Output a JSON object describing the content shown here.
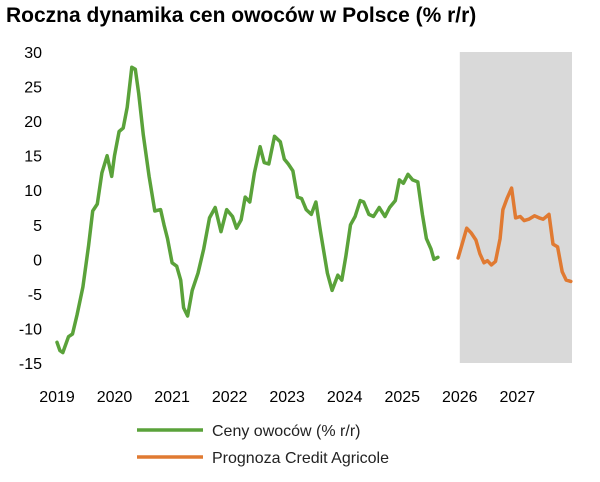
{
  "chart_data": {
    "type": "line",
    "title": "Roczna dynamika cen owoców w Polsce (% r/r)",
    "xlabel": "",
    "ylabel": "",
    "ylim": [
      -15,
      30
    ],
    "yticks": [
      30,
      25,
      20,
      15,
      10,
      5,
      0,
      -5,
      -10,
      -15
    ],
    "xticks": [
      "2019",
      "2020",
      "2021",
      "2022",
      "2023",
      "2024",
      "2025",
      "2026",
      "2027"
    ],
    "xlim": [
      2019.0,
      2027.95
    ],
    "grid": false,
    "legend_position": "bottom",
    "shaded_region": {
      "from": 2026.0,
      "to": 2027.95,
      "color": "#d9d9d9"
    },
    "series": [
      {
        "name": "Ceny owoców (% r/r)",
        "color": "#5aa23a",
        "x": [
          2019.0,
          2019.05,
          2019.1,
          2019.2,
          2019.27,
          2019.35,
          2019.45,
          2019.55,
          2019.62,
          2019.7,
          2019.78,
          2019.87,
          2019.95,
          2020.0,
          2020.08,
          2020.15,
          2020.22,
          2020.3,
          2020.36,
          2020.42,
          2020.5,
          2020.6,
          2020.7,
          2020.8,
          2020.86,
          2020.92,
          2021.0,
          2021.08,
          2021.15,
          2021.2,
          2021.27,
          2021.35,
          2021.45,
          2021.55,
          2021.65,
          2021.75,
          2021.85,
          2021.95,
          2022.05,
          2022.12,
          2022.2,
          2022.27,
          2022.35,
          2022.43,
          2022.53,
          2022.6,
          2022.68,
          2022.78,
          2022.88,
          2022.95,
          2023.02,
          2023.1,
          2023.18,
          2023.25,
          2023.33,
          2023.42,
          2023.5,
          2023.58,
          2023.7,
          2023.78,
          2023.88,
          2023.95,
          2024.02,
          2024.1,
          2024.18,
          2024.27,
          2024.33,
          2024.42,
          2024.5,
          2024.6,
          2024.7,
          2024.78,
          2024.88,
          2024.95,
          2025.02,
          2025.1,
          2025.18,
          2025.27,
          2025.35,
          2025.42,
          2025.5,
          2025.55,
          2025.62,
          2025.7,
          2025.8,
          2025.88,
          2025.95
        ],
        "values": [
          -12.0,
          -13.2,
          -13.5,
          -11.2,
          -10.8,
          -8.0,
          -4.0,
          2.0,
          7.0,
          8.0,
          12.5,
          15.0,
          12.0,
          15.0,
          18.5,
          19.0,
          22.0,
          27.8,
          27.5,
          24.0,
          18.0,
          12.0,
          7.0,
          7.2,
          5.0,
          3.0,
          -0.5,
          -1.0,
          -3.0,
          -7.0,
          -8.2,
          -4.5,
          -2.0,
          1.5,
          6.0,
          7.5,
          4.0,
          7.2,
          6.2,
          4.5,
          5.7,
          9.0,
          8.3,
          12.5,
          16.3,
          14.0,
          13.8,
          17.8,
          17.0,
          14.5,
          13.8,
          12.8,
          9.0,
          8.8,
          7.2,
          6.5,
          8.3,
          4.0,
          -2.0,
          -4.5,
          -2.3,
          -3.0,
          0.5,
          5.0,
          6.2,
          8.5,
          8.3,
          6.5,
          6.2,
          7.5,
          6.2,
          7.5,
          8.5,
          11.5,
          11.0,
          12.3,
          11.5,
          11.2,
          6.5,
          3.0,
          1.5,
          0.0,
          0.3,
          null,
          null,
          null,
          null
        ]
      },
      {
        "name": "Prognoza Credit Agricole",
        "color": "#e07a32",
        "x": [
          2025.97,
          2026.05,
          2026.12,
          2026.2,
          2026.28,
          2026.35,
          2026.42,
          2026.48,
          2026.55,
          2026.62,
          2026.7,
          2026.75,
          2026.82,
          2026.9,
          2026.97,
          2027.05,
          2027.12,
          2027.2,
          2027.3,
          2027.38,
          2027.45,
          2027.55,
          2027.62,
          2027.7,
          2027.78,
          2027.85,
          2027.93
        ],
        "values": [
          0.2,
          2.5,
          4.5,
          3.8,
          2.8,
          0.8,
          -0.5,
          -0.2,
          -0.8,
          -0.3,
          3.0,
          7.2,
          8.8,
          10.3,
          6.0,
          6.2,
          5.6,
          5.8,
          6.3,
          6.0,
          5.8,
          6.5,
          2.2,
          1.8,
          -1.8,
          -3.0,
          -3.2
        ]
      }
    ]
  }
}
